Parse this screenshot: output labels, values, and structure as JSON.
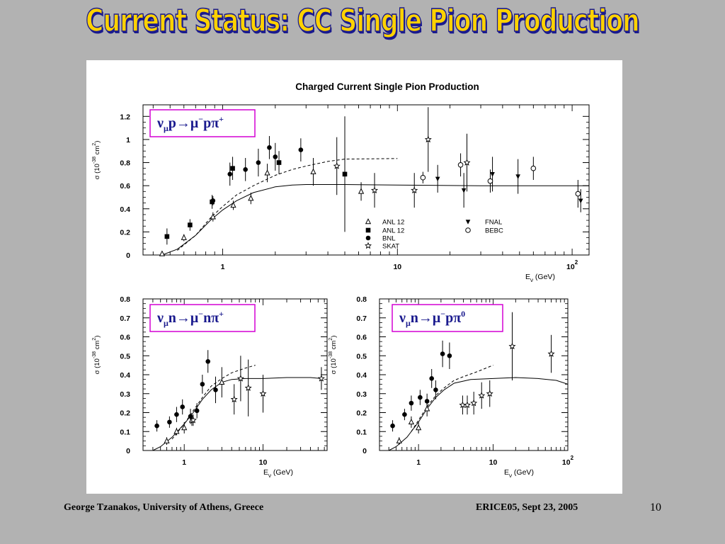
{
  "slide": {
    "title": "Current Status: CC Single Pion Production",
    "footer_left": "George Tzanakos, University of Athens, Greece",
    "footer_center": "ERICE05, Sept 23, 2005",
    "page_number": "10",
    "colors": {
      "background": "#b2b2b2",
      "title_fill": "#ffd200",
      "title_outline": "#1a1a8e",
      "reaction_text": "#1a1a8e",
      "reaction_box": "#d400d4"
    }
  },
  "chart_data": [
    {
      "type": "scatter",
      "title": "Charged Current Single Pion Production",
      "reaction_label": {
        "nu": "ν",
        "nu_sub": "μ",
        "init": "p",
        "arrow": "→",
        "mu": "μ",
        "mu_sup": "−",
        "final": "p",
        "pi": "π",
        "pi_sup": "+"
      },
      "ylabel": {
        "pre": "σ (10",
        "exp": "-38",
        "mid": " cm",
        "sq": "2",
        "post": ")"
      },
      "xlabel": {
        "pre": "E",
        "sub": "ν",
        "post": " (GeV)"
      },
      "xscale": "log",
      "xlim": [
        0.35,
        125
      ],
      "ylim": [
        0,
        1.3
      ],
      "yticks": [
        "0",
        "0.2",
        "0.4",
        "0.6",
        "0.8",
        "1",
        "1.2"
      ],
      "xticks": [
        {
          "v": 1,
          "label": "1"
        },
        {
          "v": 10,
          "label": "10"
        },
        {
          "v": 100,
          "label": "10",
          "sup": "2"
        }
      ],
      "legend_position": "bottom-right",
      "legend": [
        {
          "marker": "tri-open",
          "label": "ANL 12"
        },
        {
          "marker": "square",
          "label": "ANL 12"
        },
        {
          "marker": "circle",
          "label": "BNL"
        },
        {
          "marker": "star",
          "label": "SKAT"
        },
        {
          "marker": "tri-down",
          "label": "FNAL"
        },
        {
          "marker": "circle-open",
          "label": "BEBC"
        }
      ],
      "series": [
        {
          "marker": "tri-open",
          "points": [
            [
              0.45,
              0.01,
              0.01
            ],
            [
              0.6,
              0.15,
              0.03
            ],
            [
              0.88,
              0.33,
              0.04
            ],
            [
              1.15,
              0.43,
              0.04
            ],
            [
              1.45,
              0.49,
              0.05
            ],
            [
              1.8,
              0.71,
              0.08
            ],
            [
              3.3,
              0.72,
              0.12
            ],
            [
              6.2,
              0.55,
              0.08
            ]
          ]
        },
        {
          "marker": "square",
          "points": [
            [
              0.48,
              0.16,
              0.07
            ],
            [
              0.65,
              0.26,
              0.05
            ],
            [
              0.87,
              0.46,
              0.06
            ],
            [
              1.14,
              0.75,
              0.1
            ],
            [
              2.1,
              0.8,
              0.1
            ],
            [
              5.0,
              0.7,
              0.5
            ]
          ]
        },
        {
          "marker": "circle",
          "points": [
            [
              0.88,
              0.47,
              0.04
            ],
            [
              1.1,
              0.7,
              0.1
            ],
            [
              1.35,
              0.74,
              0.1
            ],
            [
              1.6,
              0.8,
              0.12
            ],
            [
              1.85,
              0.93,
              0.1
            ],
            [
              2.0,
              0.85,
              0.12
            ],
            [
              2.8,
              0.91,
              0.1
            ]
          ]
        },
        {
          "marker": "star",
          "points": [
            [
              4.5,
              0.77,
              0.25
            ],
            [
              7.4,
              0.56,
              0.15
            ],
            [
              12.5,
              0.56,
              0.15
            ],
            [
              15.0,
              1.0,
              0.28
            ],
            [
              25.0,
              0.8,
              0.25
            ]
          ]
        },
        {
          "marker": "tri-down",
          "points": [
            [
              17.0,
              0.66,
              0.12
            ],
            [
              24.0,
              0.56,
              0.15
            ],
            [
              35.0,
              0.7,
              0.15
            ],
            [
              49.0,
              0.68,
              0.15
            ],
            [
              112.0,
              0.47,
              0.1
            ]
          ]
        },
        {
          "marker": "circle-open",
          "points": [
            [
              14.0,
              0.67,
              0.05
            ],
            [
              23.0,
              0.78,
              0.1
            ],
            [
              34.0,
              0.64,
              0.1
            ],
            [
              60.0,
              0.75,
              0.1
            ],
            [
              108.0,
              0.53,
              0.12
            ]
          ]
        }
      ],
      "curves": [
        {
          "style": "solid",
          "points": [
            [
              0.45,
              0.0
            ],
            [
              0.55,
              0.05
            ],
            [
              0.7,
              0.17
            ],
            [
              0.85,
              0.3
            ],
            [
              1.0,
              0.39
            ],
            [
              1.2,
              0.47
            ],
            [
              1.5,
              0.54
            ],
            [
              2.0,
              0.59
            ],
            [
              2.5,
              0.605
            ],
            [
              3.0,
              0.61
            ],
            [
              5.0,
              0.61
            ],
            [
              10.0,
              0.605
            ],
            [
              30.0,
              0.6
            ],
            [
              125.0,
              0.6
            ]
          ]
        },
        {
          "style": "dashed",
          "points": [
            [
              0.55,
              0.04
            ],
            [
              0.7,
              0.17
            ],
            [
              0.85,
              0.32
            ],
            [
              1.0,
              0.42
            ],
            [
              1.2,
              0.52
            ],
            [
              1.5,
              0.6
            ],
            [
              2.0,
              0.69
            ],
            [
              2.5,
              0.74
            ],
            [
              3.0,
              0.77
            ],
            [
              4.0,
              0.81
            ],
            [
              5.0,
              0.83
            ],
            [
              10.0,
              0.835
            ]
          ]
        }
      ]
    },
    {
      "type": "scatter",
      "reaction_label": {
        "nu": "ν",
        "nu_sub": "μ",
        "init": "n",
        "arrow": "→",
        "mu": "μ",
        "mu_sup": "−",
        "final": "n",
        "pi": "π",
        "pi_sup": "+"
      },
      "ylabel": {
        "pre": "σ (10",
        "exp": "-38",
        "mid": " cm",
        "sq": "2",
        "post": ")"
      },
      "xlabel": {
        "pre": "E",
        "sub": "ν",
        "post": " (GeV)"
      },
      "xscale": "log",
      "xlim": [
        0.3,
        65
      ],
      "ylim": [
        0,
        0.8
      ],
      "yticks": [
        "0",
        "0.1",
        "0.2",
        "0.3",
        "0.4",
        "0.5",
        "0.6",
        "0.7",
        "0.8"
      ],
      "xticks": [
        {
          "v": 1,
          "label": "1"
        },
        {
          "v": 10,
          "label": "10"
        }
      ],
      "series": [
        {
          "marker": "circle",
          "points": [
            [
              0.45,
              0.13,
              0.03
            ],
            [
              0.65,
              0.15,
              0.03
            ],
            [
              0.8,
              0.19,
              0.04
            ],
            [
              0.95,
              0.23,
              0.04
            ],
            [
              1.2,
              0.18,
              0.04
            ],
            [
              1.45,
              0.21,
              0.04
            ],
            [
              1.7,
              0.35,
              0.05
            ],
            [
              2.0,
              0.47,
              0.06
            ],
            [
              2.5,
              0.32,
              0.07
            ]
          ]
        },
        {
          "marker": "tri-open",
          "points": [
            [
              0.6,
              0.05,
              0.02
            ],
            [
              0.8,
              0.1,
              0.02
            ],
            [
              1.0,
              0.12,
              0.03
            ],
            [
              1.25,
              0.16,
              0.03
            ],
            [
              3.0,
              0.36,
              0.08
            ]
          ]
        },
        {
          "marker": "star",
          "points": [
            [
              1.3,
              0.16,
              0.03
            ],
            [
              4.3,
              0.27,
              0.08
            ],
            [
              5.2,
              0.38,
              0.12
            ],
            [
              6.5,
              0.33,
              0.15
            ],
            [
              10.0,
              0.3,
              0.1
            ],
            [
              55.0,
              0.38,
              0.06
            ]
          ]
        }
      ],
      "curves": [
        {
          "style": "solid",
          "points": [
            [
              0.4,
              0.0
            ],
            [
              0.5,
              0.02
            ],
            [
              0.7,
              0.07
            ],
            [
              1.0,
              0.14
            ],
            [
              1.3,
              0.2
            ],
            [
              1.7,
              0.27
            ],
            [
              2.2,
              0.32
            ],
            [
              3.0,
              0.36
            ],
            [
              4.0,
              0.375
            ],
            [
              6.0,
              0.38
            ],
            [
              10.0,
              0.38
            ],
            [
              20.0,
              0.385
            ],
            [
              40.0,
              0.385
            ],
            [
              55.0,
              0.38
            ]
          ]
        },
        {
          "style": "dashed",
          "points": [
            [
              0.7,
              0.06
            ],
            [
              1.0,
              0.14
            ],
            [
              1.3,
              0.21
            ],
            [
              1.7,
              0.28
            ],
            [
              2.2,
              0.34
            ],
            [
              3.0,
              0.38
            ],
            [
              4.0,
              0.41
            ],
            [
              6.0,
              0.435
            ],
            [
              8.0,
              0.45
            ]
          ]
        }
      ]
    },
    {
      "type": "scatter",
      "reaction_label": {
        "nu": "ν",
        "nu_sub": "μ",
        "init": "n",
        "arrow": "→",
        "mu": "μ",
        "mu_sup": "−",
        "final": "p",
        "pi": "π",
        "pi_sup": "0"
      },
      "ylabel": {
        "pre": "σ (10",
        "exp": "-38",
        "mid": " cm",
        "sq": "2",
        "post": ")"
      },
      "xlabel": {
        "pre": "E",
        "sub": "ν",
        "post": " (GeV)"
      },
      "xscale": "log",
      "xlim": [
        0.3,
        100
      ],
      "ylim": [
        0,
        0.8
      ],
      "yticks": [
        "0",
        "0.1",
        "0.2",
        "0.3",
        "0.4",
        "0.5",
        "0.6",
        "0.7",
        "0.8"
      ],
      "xticks": [
        {
          "v": 1,
          "label": "1"
        },
        {
          "v": 10,
          "label": "10"
        },
        {
          "v": 100,
          "label": "10",
          "sup": "2"
        }
      ],
      "series": [
        {
          "marker": "circle",
          "points": [
            [
              0.45,
              0.13,
              0.03
            ],
            [
              0.65,
              0.19,
              0.03
            ],
            [
              0.8,
              0.25,
              0.04
            ],
            [
              1.05,
              0.28,
              0.04
            ],
            [
              1.3,
              0.26,
              0.04
            ],
            [
              1.5,
              0.38,
              0.05
            ],
            [
              1.7,
              0.32,
              0.05
            ],
            [
              2.1,
              0.51,
              0.07
            ],
            [
              2.6,
              0.5,
              0.07
            ]
          ]
        },
        {
          "marker": "tri-open",
          "points": [
            [
              0.55,
              0.05,
              0.02
            ],
            [
              0.8,
              0.15,
              0.03
            ],
            [
              1.0,
              0.12,
              0.03
            ],
            [
              1.3,
              0.22,
              0.04
            ]
          ]
        },
        {
          "marker": "star",
          "points": [
            [
              3.9,
              0.24,
              0.05
            ],
            [
              4.5,
              0.24,
              0.05
            ],
            [
              5.5,
              0.25,
              0.06
            ],
            [
              7.0,
              0.29,
              0.07
            ],
            [
              9.0,
              0.3,
              0.07
            ],
            [
              18.0,
              0.55,
              0.18
            ],
            [
              60.0,
              0.51,
              0.1
            ]
          ]
        }
      ],
      "curves": [
        {
          "style": "solid",
          "points": [
            [
              0.4,
              0.0
            ],
            [
              0.5,
              0.02
            ],
            [
              0.7,
              0.07
            ],
            [
              1.0,
              0.15
            ],
            [
              1.3,
              0.22
            ],
            [
              1.7,
              0.28
            ],
            [
              2.2,
              0.32
            ],
            [
              3.0,
              0.355
            ],
            [
              5.0,
              0.375
            ],
            [
              10.0,
              0.38
            ],
            [
              20.0,
              0.385
            ],
            [
              40.0,
              0.38
            ],
            [
              70.0,
              0.37
            ],
            [
              100.0,
              0.35
            ]
          ]
        },
        {
          "style": "dashed",
          "points": [
            [
              0.8,
              0.1
            ],
            [
              1.0,
              0.16
            ],
            [
              1.3,
              0.23
            ],
            [
              1.7,
              0.29
            ],
            [
              2.2,
              0.33
            ],
            [
              3.0,
              0.37
            ],
            [
              4.0,
              0.39
            ],
            [
              6.0,
              0.415
            ],
            [
              10.0,
              0.45
            ]
          ]
        }
      ]
    }
  ]
}
